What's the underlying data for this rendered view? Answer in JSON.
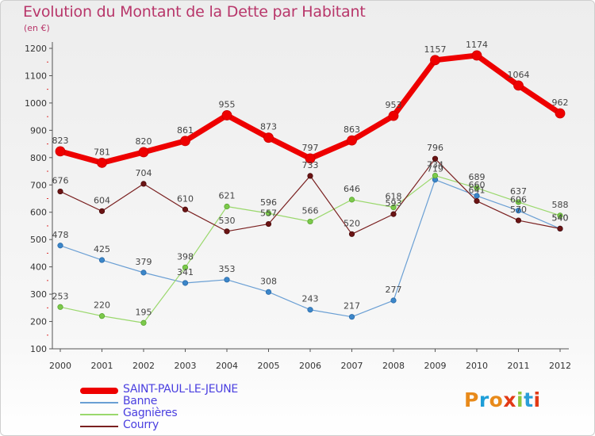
{
  "title": "Evolution du Montant de la Dette par Habitant",
  "unit_label": "(en €)",
  "logo": {
    "letters": [
      "P",
      "r",
      "o",
      "x",
      "i",
      "t",
      "i"
    ],
    "colors": [
      "#e88a1a",
      "#1e9ed8",
      "#e88a1a",
      "#e23a16",
      "#8cc63e",
      "#2a9ed8",
      "#e23a16"
    ]
  },
  "chart_data": {
    "type": "line",
    "title": "Evolution du Montant de la Dette par Habitant",
    "ylabel": "(en €)",
    "x": [
      "2000",
      "2001",
      "2002",
      "2003",
      "2004",
      "2005",
      "2006",
      "2007",
      "2008",
      "2009",
      "2010",
      "2011",
      "2012"
    ],
    "yticks": [
      100,
      200,
      300,
      400,
      500,
      600,
      700,
      800,
      900,
      1000,
      1100,
      1200
    ],
    "ylim": [
      100,
      1200
    ],
    "grid": false,
    "legend_position": "bottom",
    "series": [
      {
        "name": "SAINT-PAUL-LE-JEUNE",
        "color": "#ee0000",
        "values": [
          823,
          781,
          820,
          861,
          955,
          873,
          797,
          863,
          953,
          1157,
          1174,
          1064,
          962
        ]
      },
      {
        "name": "Banne",
        "color": "#6a9fd4",
        "values": [
          478,
          425,
          379,
          341,
          353,
          308,
          243,
          217,
          277,
          719,
          660,
          606,
          540
        ]
      },
      {
        "name": "Gagnières",
        "color": "#9ad86c",
        "values": [
          253,
          220,
          195,
          398,
          621,
          596,
          566,
          646,
          618,
          734,
          689,
          637,
          588
        ]
      },
      {
        "name": "Courry",
        "color": "#7a2020",
        "values": [
          676,
          604,
          704,
          610,
          530,
          557,
          733,
          520,
          593,
          796,
          641,
          570,
          540
        ]
      }
    ]
  }
}
